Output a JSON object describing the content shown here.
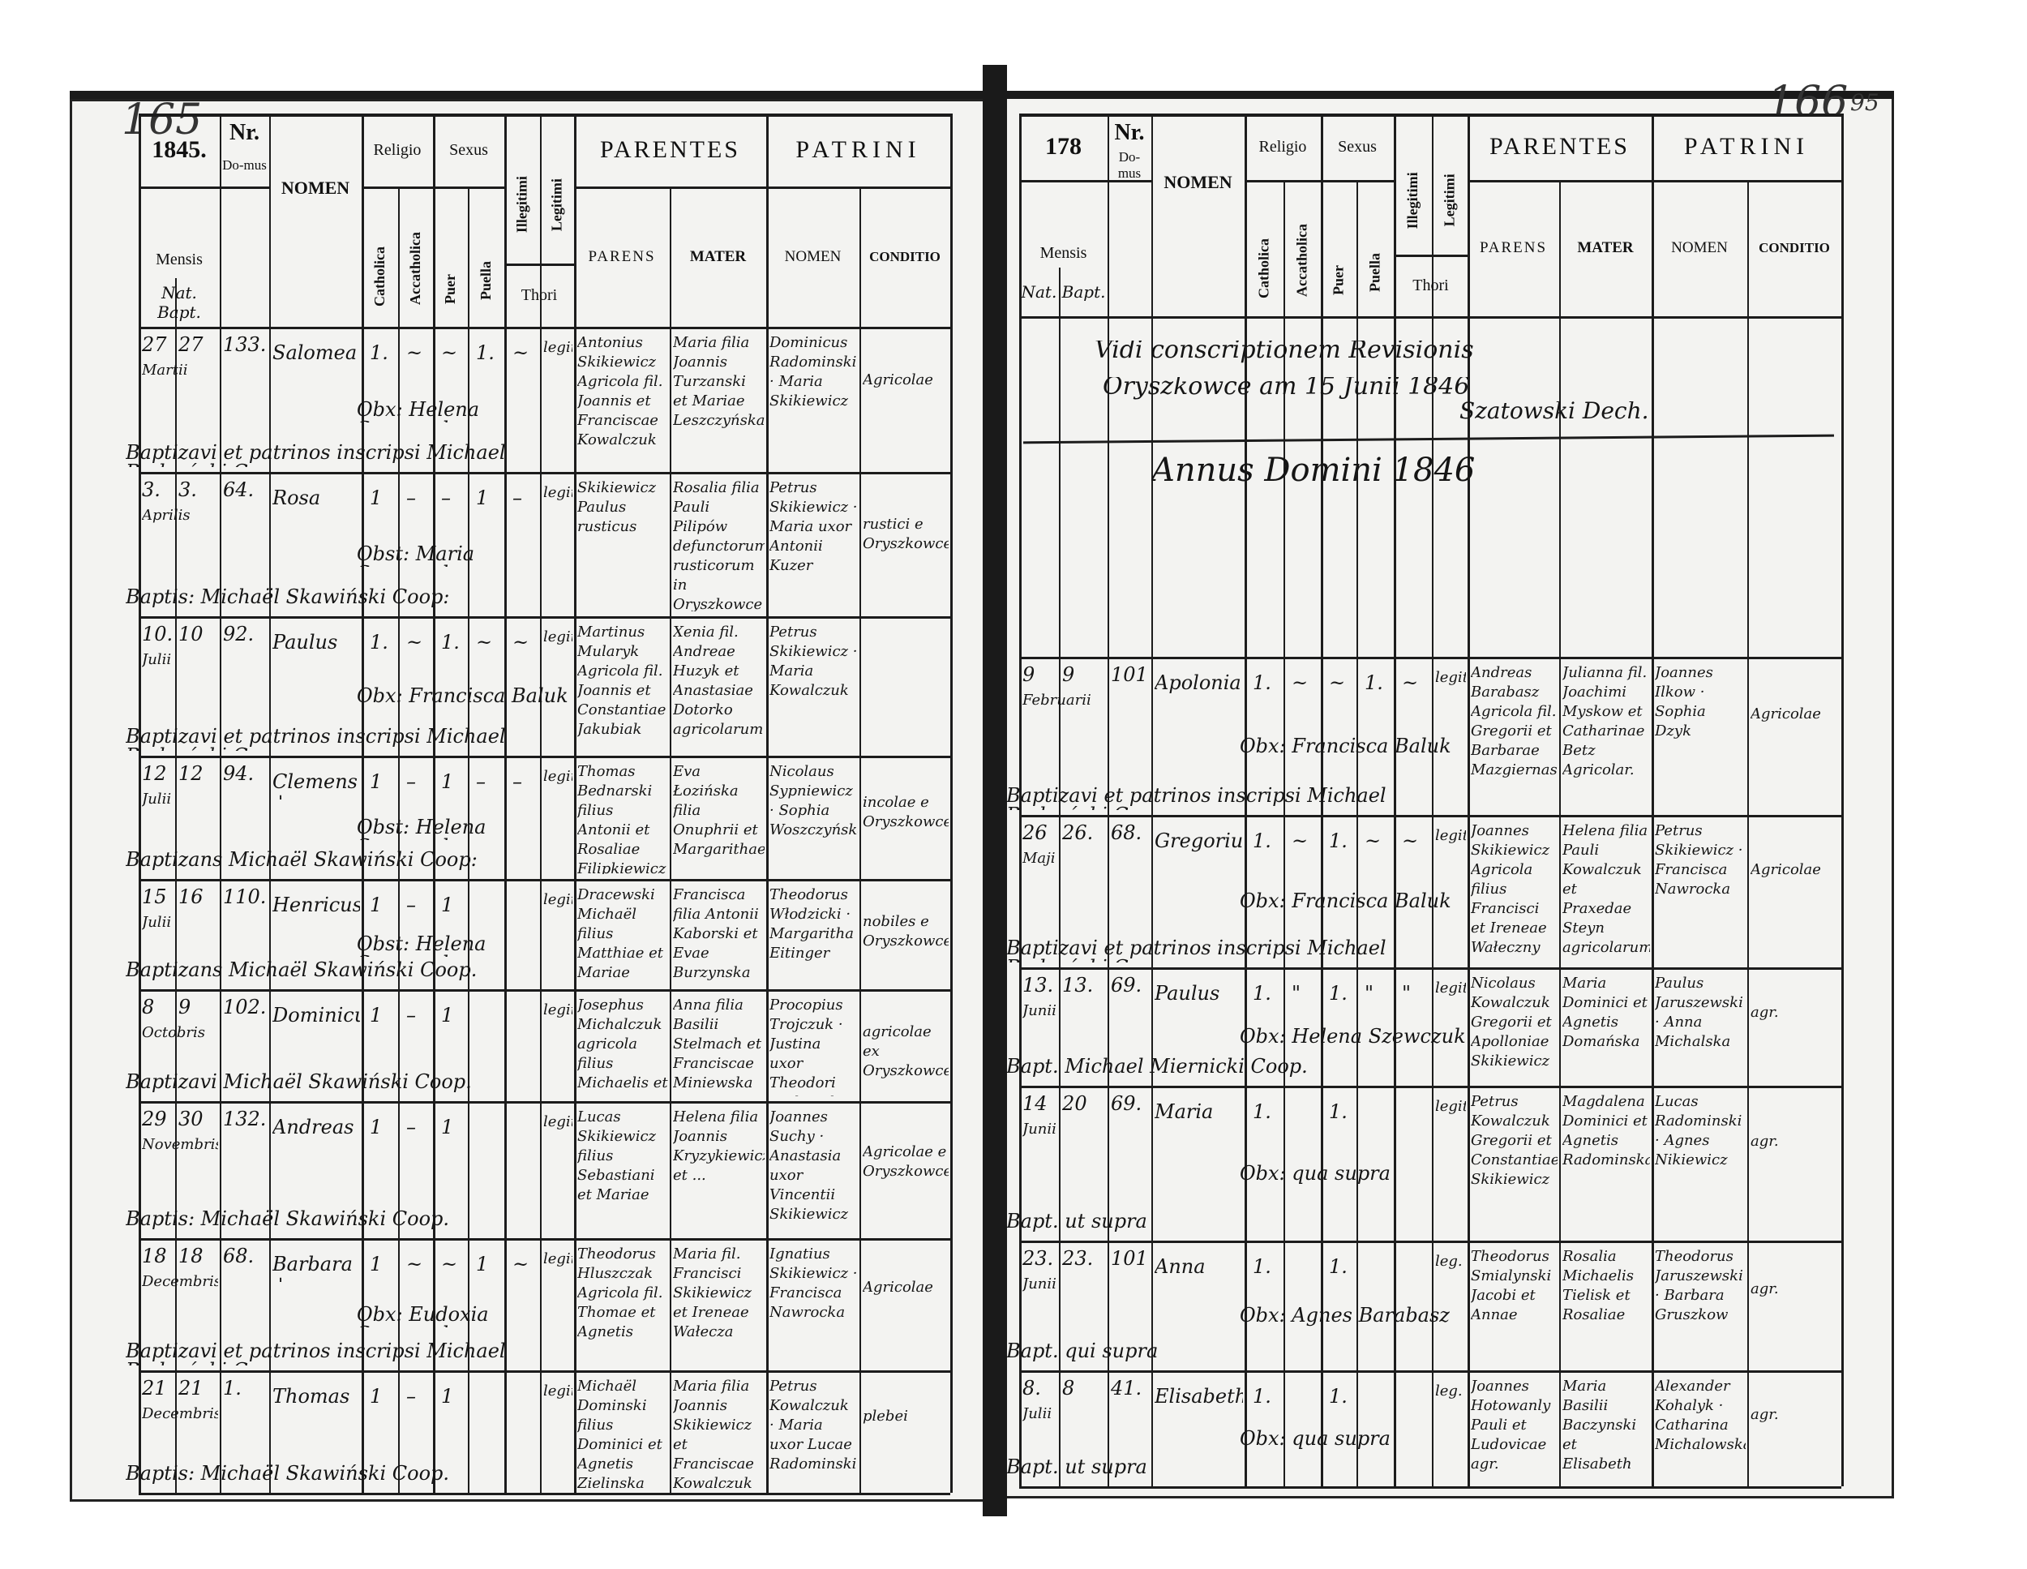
{
  "page_numbers": {
    "left": "165",
    "right": "166",
    "right_small": "95"
  },
  "headers": {
    "nomen": "NOMEN",
    "religio": "Religio",
    "sexus": "Sexus",
    "catholica": "Catholica",
    "accatholica": "Accatholica",
    "puer": "Puer",
    "puella": "Puella",
    "illegitimi": "Illegitimi",
    "legitimi": "Legitimi",
    "thori": "Thori",
    "parentes": "PARENTES",
    "patrini": "PATRINI",
    "parens": "PARENS",
    "mater": "MATER",
    "patrini_nomen": "NOMEN",
    "conditio": "CONDITIO",
    "nr": "Nr.",
    "domus": "Do-mus",
    "mensis": "Mensis",
    "nat_bapt": "Nat. Bapt."
  },
  "left": {
    "year": "1845.",
    "entries": [
      {
        "nat": "27",
        "bapt": "27",
        "month": "Martii",
        "house": "133.",
        "name": "Salomea",
        "marks": [
          "1.",
          "~",
          "~",
          "1.",
          "~"
        ],
        "legit": "legitimi",
        "parens": "Antonius Skikiewicz Agricola fil. Joannis et Franciscae Kowalczuk",
        "mater": "Maria filia Joannis Turzanski et Mariae Leszczyńska",
        "patrini": "Dominicus Radominski · Maria Skikiewicz",
        "conditio": "Agricolae",
        "obst": "Obx: Helena Szewczuk",
        "bapt_line": "Baptizavi et patrinos inscripsi Michael Budzyński Coop."
      },
      {
        "nat": "3.",
        "bapt": "3.",
        "month": "Aprilis",
        "house": "64.",
        "name": "Rosa",
        "marks": [
          "1",
          "–",
          "–",
          "1",
          "–"
        ],
        "legit": "legitimi",
        "parens": "Skikiewicz Paulus rusticus",
        "mater": "Rosalia filia Pauli Pilipów defunctorum rusticorum in Oryszkowce uxorisque ejus Agnetis",
        "patrini": "Petrus Skikiewicz · Maria uxor Antonii Kuzer",
        "conditio": "rustici e Oryszkowce",
        "obst": "Obst: Maria Szewczuk",
        "bapt_line": "Baptis: Michaël Skawiński Coop:"
      },
      {
        "nat": "10.",
        "bapt": "10",
        "month": "Julii",
        "house": "92.",
        "name": "Paulus",
        "marks": [
          "1.",
          "~",
          "1.",
          "~",
          "~"
        ],
        "legit": "legitimi",
        "parens": "Martinus Mularyk Agricola fil. Joannis et Constantiae Jakubiak",
        "mater": "Xenia fil. Andreae Huzyk et Anastasiae Dotorko agricolarum",
        "patrini": "Petrus Skikiewicz · Maria Kowalczuk",
        "conditio": "",
        "obst": "Obx: Francisca Baluk",
        "bapt_line": "Baptizavi et patrinos inscripsi Michael Budzyński Coop."
      },
      {
        "nat": "12",
        "bapt": "12",
        "month": "Julii",
        "house": "94.",
        "name": "Clemens +",
        "marks": [
          "1",
          "–",
          "1",
          "–",
          "–"
        ],
        "legit": "legitimi",
        "parens": "Thomas Bednarski filius Antonii et Rosaliae Filipkiewicz",
        "mater": "Eva Łozińska filia Onuphrii et Margarithae",
        "patrini": "Nicolaus Sypniewicz · Sophia Woszczyńska",
        "conditio": "incolae e Oryszkowce",
        "obst": "Obst: Helena Szewczuk",
        "bapt_line": "Baptizans Michaël Skawiński Coop:"
      },
      {
        "nat": "15",
        "bapt": "16",
        "month": "Julii",
        "house": "110.",
        "name": "Henricus",
        "marks": [
          "1",
          "–",
          "1",
          "",
          ""
        ],
        "legit": "legitimi",
        "parens": "Dracewski Michaël filius Matthiae et Mariae nobilis",
        "mater": "Francisca filia Antonii Kaborski et Evae Burzynska",
        "patrini": "Theodorus Włodzicki · Margaritha Eitinger",
        "conditio": "nobiles e Oryszkowce",
        "obst": "Obst: Helena Szewczuk",
        "bapt_line": "Baptizans Michaël Skawiński Coop."
      },
      {
        "nat": "8",
        "bapt": "9",
        "month": "Octobris",
        "house": "102.",
        "name": "Dominicus",
        "marks": [
          "1",
          "–",
          "1",
          "",
          ""
        ],
        "legit": "legitimi",
        "parens": "Josephus Michalczuk agricola filius Michaelis et Annae Huzyk",
        "mater": "Anna filia Basilii Stelmach et Franciscae Miniewska",
        "patrini": "Procopius Trojczuk · Justina uxor Theodori Stelmach",
        "conditio": "agricolae ex Oryszkowce",
        "obst": "",
        "bapt_line": "Baptizavi Michaël Skawiński Coop."
      },
      {
        "nat": "29",
        "bapt": "30",
        "month": "Novembris",
        "house": "132.",
        "name": "Andreas",
        "marks": [
          "1",
          "–",
          "1",
          "",
          ""
        ],
        "legit": "legitimi",
        "parens": "Lucas Skikiewicz filius Sebastiani et Mariae",
        "mater": "Helena filia Joannis Kryzykiewicz et ...",
        "patrini": "Joannes Suchy · Anastasia uxor Vincentii Skikiewicz",
        "conditio": "Agricolae e Oryszkowce",
        "obst": "",
        "bapt_line": "Baptis: Michaël Skawiński Coop."
      },
      {
        "nat": "18",
        "bapt": "18",
        "month": "Decembris",
        "house": "68.",
        "name": "Barbara +",
        "marks": [
          "1",
          "~",
          "~",
          "1",
          "~"
        ],
        "legit": "legitimi",
        "parens": "Theodorus Hluszczak Agricola fil. Thomae et Agnetis",
        "mater": "Maria fil. Francisci Skikiewicz et Ireneae Wałecza",
        "patrini": "Ignatius Skikiewicz · Francisca Nawrocka",
        "conditio": "Agricolae",
        "obst": "Obx: Eudoxia Szewczuk",
        "bapt_line": "Baptizavi et patrinos inscripsi Michael Budzyński Coop."
      },
      {
        "nat": "21",
        "bapt": "21",
        "month": "Decembris",
        "house": "1.",
        "name": "Thomas",
        "marks": [
          "1",
          "–",
          "1",
          "",
          ""
        ],
        "legit": "legitimi",
        "parens": "Michaël Dominski filius Dominici et Agnetis Zielinska",
        "mater": "Maria filia Joannis Skikiewicz et Franciscae Kowalczuk",
        "patrini": "Petrus Kowalczuk · Maria uxor Lucae Radominski",
        "conditio": "plebei",
        "obst": "",
        "bapt_line": "Baptis: Michaël Skawiński Coop."
      }
    ]
  },
  "right": {
    "year": "178",
    "annotation": {
      "line1": "Vidi conscriptionem Revisionis",
      "line2": "Oryszkowce am 15 Junii 1846",
      "signature": "Szatowski Dech.",
      "annus": "Annus Domini 1846"
    },
    "entries": [
      {
        "nat": "9",
        "bapt": "9",
        "month": "Februarii",
        "house": "101",
        "name": "Apolonia",
        "marks": [
          "1.",
          "~",
          "~",
          "1.",
          "~"
        ],
        "legit": "legitimi",
        "parens": "Andreas Barabasz Agricola fil. Gregorii et Barbarae Mazgiernaska",
        "mater": "Julianna fil. Joachimi Myskow et Catharinae Betz Agricolar.",
        "patrini": "Joannes Ilkow · Sophia Dzyk",
        "conditio": "Agricolae",
        "obst": "Obx: Francisca Baluk",
        "bapt_line": "Baptizavi et patrinos inscripsi Michael Budzyński Coop."
      },
      {
        "nat": "26",
        "bapt": "26.",
        "month": "Maji",
        "house": "68.",
        "name": "Gregorius",
        "marks": [
          "1.",
          "~",
          "1.",
          "~",
          "~"
        ],
        "legit": "legitimi",
        "parens": "Joannes Skikiewicz Agricola filius Francisci et Ireneae Wałeczny",
        "mater": "Helena filia Pauli Kowalczuk et Praxedae Steyn agricolarum",
        "patrini": "Petrus Skikiewicz · Francisca Nawrocka",
        "conditio": "Agricolae",
        "obst": "Obx: Francisca Baluk",
        "bapt_line": "Baptizavi et patrinos inscripsi Michael Budzyński Coop."
      },
      {
        "nat": "13.",
        "bapt": "13.",
        "month": "Junii",
        "house": "69.",
        "name": "Paulus",
        "marks": [
          "1.",
          "\"",
          "1.",
          "\"",
          "\""
        ],
        "legit": "legit.",
        "parens": "Nicolaus Kowalczuk Gregorii et Apolloniae Skikiewicz",
        "mater": "Maria Dominici et Agnetis Domańska",
        "patrini": "Paulus Jaruszewski · Anna Michalska",
        "conditio": "agr.",
        "obst": "Obx: Helena Szewczuk",
        "bapt_line": "Bapt. Michael Miernicki Coop."
      },
      {
        "nat": "14",
        "bapt": "20",
        "month": "Junii",
        "house": "69.",
        "name": "Maria",
        "marks": [
          "1.",
          "",
          "1.",
          "",
          ""
        ],
        "legit": "legit.",
        "parens": "Petrus Kowalczuk Gregorii et Constantiae Skikiewicz",
        "mater": "Magdalena Dominici et Agnetis Radominska",
        "patrini": "Lucas Radominski · Agnes Nikiewicz",
        "conditio": "agr.",
        "obst": "Obx: qua supra",
        "bapt_line": "Bapt. ut supra"
      },
      {
        "nat": "23.",
        "bapt": "23.",
        "month": "Junii",
        "house": "101.",
        "name": "Anna",
        "marks": [
          "1.",
          "",
          "1.",
          "",
          ""
        ],
        "legit": "leg.",
        "parens": "Theodorus Smialynski Jacobi et Annae",
        "mater": "Rosalia Michaelis Tielisk et Rosaliae",
        "patrini": "Theodorus Jaruszewski · Barbara Gruszkow",
        "conditio": "agr.",
        "obst": "Obx: Agnes Barabasz",
        "bapt_line": "Bapt. qui supra"
      },
      {
        "nat": "8.",
        "bapt": "8",
        "month": "Julii",
        "house": "41.",
        "name": "Elisabeth",
        "marks": [
          "1.",
          "",
          "1.",
          "",
          ""
        ],
        "legit": "leg.",
        "parens": "Joannes Hotowanly Pauli et Ludovicae agr.",
        "mater": "Maria Basilii Baczynski et Elisabeth",
        "patrini": "Alexander Kohalyk · Catharina Michalowska",
        "conditio": "agr.",
        "obst": "Obx: qua supra",
        "bapt_line": "Bapt. ut supra"
      }
    ]
  }
}
